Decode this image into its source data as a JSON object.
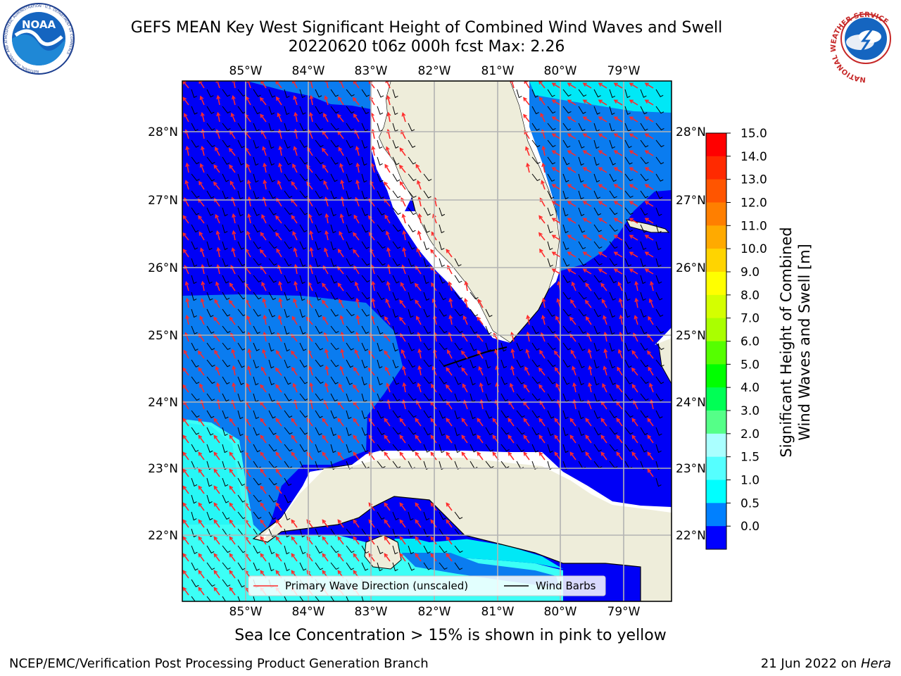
{
  "header": {
    "title_line1": "GEFS MEAN Key West Significant Height of Combined Wind Waves and Swell",
    "title_line2": "20220620 t06z 000h fcst   Max: 2.26"
  },
  "logos": {
    "noaa_text": "NOAA",
    "noaa_ring": "NATIONAL OCEANIC AND ATMOSPHERIC ADMINISTRATION · U.S. DEPARTMENT OF COMMERCE",
    "nws_ring": "NATIONAL WEATHER SERVICE"
  },
  "map": {
    "lon_labels": [
      "85°W",
      "84°W",
      "83°W",
      "82°W",
      "81°W",
      "80°W",
      "79°W"
    ],
    "lat_labels": [
      "28°N",
      "27°N",
      "26°N",
      "25°N",
      "24°N",
      "23°N",
      "22°N"
    ],
    "legend": {
      "wave_label": "Primary Wave Direction (unscaled)",
      "wind_label": "Wind Barbs"
    },
    "colors": {
      "land": "#eeedda",
      "ocean_0_05": "#0000f6",
      "ocean_05_1": "#0a7cf0",
      "ocean_1_15": "#00e8f6",
      "ocean_15_2": "#3cfff6",
      "wave_arrow": "#ff2a2a",
      "wind_barb": "#000000",
      "gridline": "#b3b3b3"
    }
  },
  "colorbar": {
    "label_line1": "Significant Height of Combined",
    "label_line2": "Wind Waves and Swell [m]",
    "ticks": [
      "15.0",
      "14.0",
      "13.0",
      "12.0",
      "11.0",
      "10.0",
      "9.0",
      "8.0",
      "7.0",
      "6.0",
      "5.0",
      "4.0",
      "3.0",
      "2.0",
      "1.5",
      "1.0",
      "0.5",
      "0.0"
    ],
    "bands": [
      "#ff0000",
      "#ff2a00",
      "#ff5500",
      "#ff7f00",
      "#ffaa00",
      "#ffd400",
      "#ffff00",
      "#d4ff00",
      "#aaff00",
      "#55ff00",
      "#00ff00",
      "#00ff55",
      "#55ff88",
      "#aaffff",
      "#55ffff",
      "#00ffff",
      "#0080ff",
      "#0000ff"
    ]
  },
  "note": "Sea Ice Concentration > 15% is shown in pink to yellow",
  "footer": {
    "left": "NCEP/EMC/Verification Post Processing Product Generation Branch",
    "right_date": "21 Jun 2022 on ",
    "right_host": "Hera"
  }
}
